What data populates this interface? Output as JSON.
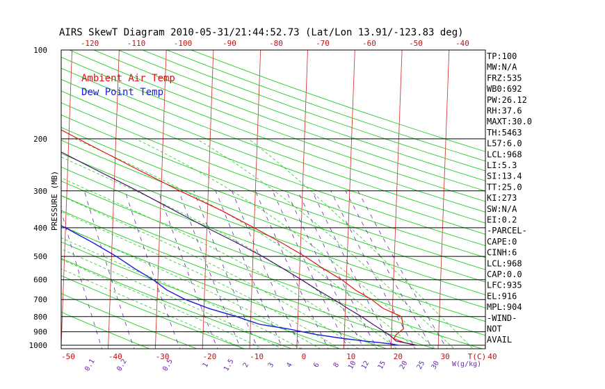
{
  "chart_data": {
    "type": "line",
    "title": "AIRS SkewT Diagram 2010-05-31/21:44:52.73 (Lat/Lon 13.91/-123.83 deg)",
    "ylabel": "PRESSURE (MB)",
    "y_scale": "log",
    "ylim": [
      1050,
      100
    ],
    "xlim_bottom": [
      -50,
      40
    ],
    "pressure_ticks": [
      100,
      200,
      300,
      400,
      500,
      600,
      700,
      800,
      900,
      1000
    ],
    "bottom_temp_ticks": [
      "-50",
      "-40",
      "-30",
      "-20",
      "-10",
      "0",
      "10",
      "20",
      "30",
      "40"
    ],
    "bottom_unit_label": "T(C)",
    "top_temp_ticks": [
      "-120",
      "-110",
      "-100",
      "-90",
      "-80",
      "-70",
      "-60",
      "-50",
      "-40"
    ],
    "mixing_ratio_labels": [
      "0.1",
      "0.2",
      "0.5",
      "1",
      "1.5",
      "2",
      "3",
      "4",
      "6",
      "8",
      "10",
      "12",
      "15",
      "20",
      "25",
      "30"
    ],
    "mixing_ratio_values": [
      0.1,
      0.2,
      0.5,
      1,
      1.5,
      2,
      3,
      4,
      6,
      8,
      10,
      12,
      15,
      20,
      25,
      30
    ],
    "mixing_ratio_unit": "W(g/kg)",
    "legend": {
      "placement": "top-left",
      "entries": [
        {
          "label": "Ambient Air Temp",
          "color": "#e01010"
        },
        {
          "label": "Dew Point Temp",
          "color": "#1a1ae0"
        }
      ]
    },
    "colors": {
      "isotherm": "#d43a3a",
      "dry_adiabat": "#22cc22",
      "moist_adiabat": "#22cc22",
      "mixing_ratio": "#6a2aa8",
      "parcel": "#4a1070",
      "axis_text_red": "#c01010",
      "axis_text_purple": "#6a2aa8"
    },
    "series": [
      {
        "name": "Ambient Air Temp",
        "color": "#e01010",
        "points": [
          [
            1000,
            25.5
          ],
          [
            980,
            22.8
          ],
          [
            950,
            20.5
          ],
          [
            920,
            21
          ],
          [
            880,
            22.5
          ],
          [
            800,
            22
          ],
          [
            750,
            18
          ],
          [
            700,
            15.5
          ],
          [
            650,
            12
          ],
          [
            600,
            9
          ],
          [
            550,
            5
          ],
          [
            500,
            1
          ],
          [
            450,
            -4
          ],
          [
            400,
            -10
          ],
          [
            350,
            -17
          ],
          [
            300,
            -26
          ],
          [
            250,
            -36
          ],
          [
            200,
            -48
          ],
          [
            175,
            -55
          ],
          [
            150,
            -63
          ],
          [
            130,
            -65
          ],
          [
            115,
            -63
          ],
          [
            100,
            -62
          ]
        ]
      },
      {
        "name": "Dew Point Temp",
        "color": "#1a1ae0",
        "points": [
          [
            1000,
            21.5
          ],
          [
            990,
            20
          ],
          [
            970,
            15
          ],
          [
            950,
            10
          ],
          [
            920,
            4
          ],
          [
            880,
            -2
          ],
          [
            850,
            -8
          ],
          [
            800,
            -13
          ],
          [
            750,
            -19
          ],
          [
            700,
            -24
          ],
          [
            650,
            -28
          ],
          [
            600,
            -31
          ],
          [
            550,
            -35
          ],
          [
            500,
            -39
          ],
          [
            450,
            -44
          ],
          [
            400,
            -50
          ],
          [
            350,
            -58
          ],
          [
            300,
            -67
          ],
          [
            285,
            -69
          ],
          [
            280,
            -68
          ],
          [
            260,
            -69
          ],
          [
            250,
            -72
          ],
          [
            200,
            -77
          ],
          [
            175,
            -80
          ],
          [
            150,
            -83
          ],
          [
            125,
            -85
          ],
          [
            100,
            -87
          ]
        ]
      },
      {
        "name": "parcel",
        "color": "#4a1070",
        "points": [
          [
            1000,
            25.5
          ],
          [
            968,
            21
          ],
          [
            935,
            20
          ],
          [
            900,
            18.5
          ],
          [
            850,
            16
          ],
          [
            800,
            13.5
          ],
          [
            750,
            10.5
          ],
          [
            700,
            7.5
          ],
          [
            650,
            4
          ],
          [
            600,
            0.5
          ],
          [
            550,
            -3.5
          ],
          [
            500,
            -8
          ],
          [
            450,
            -13.5
          ],
          [
            400,
            -20
          ],
          [
            350,
            -27
          ],
          [
            300,
            -35
          ],
          [
            250,
            -45
          ],
          [
            200,
            -57
          ],
          [
            175,
            -64
          ],
          [
            150,
            -72
          ],
          [
            125,
            -80
          ],
          [
            100,
            -88
          ]
        ]
      }
    ],
    "indices": [
      "TP:100",
      "MW:N/A",
      "FRZ:535",
      "WB0:692",
      "PW:26.12",
      "RH:37.6",
      "MAXT:30.0",
      "TH:5463",
      "L57:6.0",
      "LCL:968",
      "LI:5.3",
      "SI:13.4",
      "TT:25.0",
      "KI:273",
      "SW:N/A",
      "EI:0.2",
      "-PARCEL-",
      "CAPE:0",
      "CINH:6",
      "LCL:968",
      "CAP:0.0",
      "LFC:935",
      "EL:916",
      "MPL:904",
      "-WIND-",
      "NOT",
      "AVAIL"
    ]
  }
}
